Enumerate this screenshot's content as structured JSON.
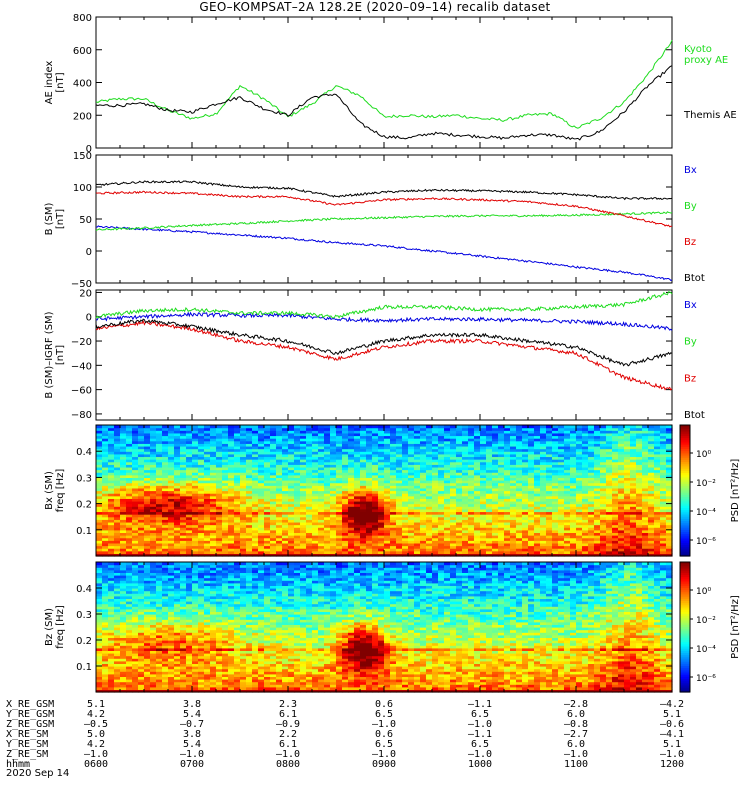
{
  "title": "GEO–KOMPSAT–2A 128.2E (2020–09–14) recalib dataset",
  "colors": {
    "black": "#000000",
    "red": "#e00000",
    "green": "#1fdc1f",
    "blue": "#0000e0"
  },
  "panels": {
    "ae": {
      "ylabel": "AE index\n[nT]",
      "legend": [
        {
          "label": "Kyoto\nproxy AE",
          "color": "#1fdc1f"
        },
        {
          "label": "Themis AE",
          "color": "#000000"
        }
      ]
    },
    "b": {
      "ylabel": "B (SM)\n[nT]",
      "legend": [
        {
          "label": "Bx",
          "color": "#0000e0"
        },
        {
          "label": "By",
          "color": "#1fdc1f"
        },
        {
          "label": "Bz",
          "color": "#e00000"
        },
        {
          "label": "Btot",
          "color": "#000000"
        }
      ]
    },
    "db": {
      "ylabel": "B (SM)–IGRF (SM)\n[nT]",
      "legend": [
        {
          "label": "Bx",
          "color": "#0000e0"
        },
        {
          "label": "By",
          "color": "#1fdc1f"
        },
        {
          "label": "Bz",
          "color": "#e00000"
        },
        {
          "label": "Btot",
          "color": "#000000"
        }
      ]
    },
    "bx_spec": {
      "ylabel": "Bx (SM)\nfreq [Hz]",
      "cbar_label": "PSD [nT²/Hz]"
    },
    "bz_spec": {
      "ylabel": "Bz (SM)\nfreq [Hz]",
      "cbar_label": "PSD [nT²/Hz]"
    }
  },
  "chart_data": [
    {
      "type": "line",
      "title": "GEO–KOMPSAT–2A 128.2E (2020–09–14) recalib dataset",
      "ylabel": "AE index [nT]",
      "xlim": [
        6.0,
        12.0
      ],
      "ylim": [
        0,
        800
      ],
      "yticks": [
        0,
        200,
        400,
        600,
        800
      ],
      "x": [
        6.0,
        6.25,
        6.5,
        6.75,
        7.0,
        7.25,
        7.5,
        7.75,
        8.0,
        8.25,
        8.5,
        8.75,
        9.0,
        9.25,
        9.5,
        9.75,
        10.0,
        10.25,
        10.5,
        10.75,
        11.0,
        11.25,
        11.5,
        11.75,
        12.0
      ],
      "series": [
        {
          "name": "Kyoto proxy AE",
          "values": [
            280,
            300,
            300,
            230,
            180,
            210,
            380,
            300,
            190,
            270,
            380,
            320,
            190,
            200,
            190,
            200,
            180,
            170,
            200,
            210,
            120,
            180,
            280,
            450,
            650
          ]
        },
        {
          "name": "Themis AE",
          "values": [
            260,
            260,
            270,
            230,
            220,
            270,
            310,
            240,
            200,
            310,
            330,
            150,
            70,
            60,
            90,
            80,
            70,
            60,
            80,
            80,
            50,
            100,
            220,
            380,
            500
          ]
        }
      ]
    },
    {
      "type": "line",
      "ylabel": "B (SM) [nT]",
      "xlim": [
        6.0,
        12.0
      ],
      "ylim": [
        -50,
        150
      ],
      "yticks": [
        -50,
        0,
        50,
        100,
        150
      ],
      "x": [
        6.0,
        6.5,
        7.0,
        7.5,
        8.0,
        8.5,
        9.0,
        9.5,
        10.0,
        10.5,
        11.0,
        11.5,
        12.0
      ],
      "series": [
        {
          "name": "Bx",
          "values": [
            38,
            34,
            30,
            25,
            20,
            13,
            8,
            0,
            -8,
            -16,
            -25,
            -33,
            -45
          ]
        },
        {
          "name": "By",
          "values": [
            33,
            36,
            40,
            43,
            47,
            50,
            52,
            54,
            55,
            55,
            56,
            58,
            60
          ]
        },
        {
          "name": "Bz",
          "values": [
            90,
            92,
            90,
            85,
            85,
            72,
            80,
            82,
            80,
            77,
            70,
            55,
            38
          ]
        },
        {
          "name": "Btot",
          "values": [
            103,
            108,
            108,
            100,
            98,
            85,
            92,
            95,
            94,
            92,
            88,
            82,
            82
          ]
        }
      ]
    },
    {
      "type": "line",
      "ylabel": "B (SM)–IGRF (SM) [nT]",
      "xlim": [
        6.0,
        12.0
      ],
      "ylim": [
        -85,
        22
      ],
      "yticks": [
        -80,
        -60,
        -40,
        -20,
        0,
        20
      ],
      "x": [
        6.0,
        6.5,
        7.0,
        7.5,
        8.0,
        8.5,
        9.0,
        9.5,
        10.0,
        10.5,
        11.0,
        11.5,
        12.0
      ],
      "series": [
        {
          "name": "Bx",
          "values": [
            -2,
            0,
            2,
            1,
            1,
            -2,
            -3,
            -2,
            -2,
            -3,
            -4,
            -6,
            -10
          ]
        },
        {
          "name": "By",
          "values": [
            0,
            5,
            6,
            3,
            3,
            0,
            8,
            8,
            6,
            6,
            8,
            10,
            20
          ]
        },
        {
          "name": "Bz",
          "values": [
            -10,
            -5,
            -10,
            -20,
            -25,
            -35,
            -25,
            -20,
            -20,
            -25,
            -30,
            -50,
            -60
          ]
        },
        {
          "name": "Btot",
          "values": [
            -8,
            -3,
            -8,
            -15,
            -20,
            -30,
            -20,
            -15,
            -15,
            -20,
            -25,
            -40,
            -30
          ]
        }
      ]
    },
    {
      "type": "heatmap",
      "ylabel": "Bx (SM) freq [Hz]",
      "xlim": [
        6.0,
        12.0
      ],
      "ylim": [
        0,
        0.5
      ],
      "yticks": [
        0.1,
        0.2,
        0.3,
        0.4
      ],
      "colorbar": {
        "label": "PSD [nT²/Hz]",
        "ticks": [
          "10⁰",
          "10⁻²",
          "10⁻⁴",
          "10⁻⁶"
        ]
      }
    },
    {
      "type": "heatmap",
      "ylabel": "Bz (SM) freq [Hz]",
      "xlim": [
        6.0,
        12.0
      ],
      "ylim": [
        0,
        0.5
      ],
      "yticks": [
        0.1,
        0.2,
        0.3,
        0.4
      ],
      "colorbar": {
        "label": "PSD [nT²/Hz]",
        "ticks": [
          "10⁰",
          "10⁻²",
          "10⁻⁴",
          "10⁻⁶"
        ]
      }
    }
  ],
  "ephemeris": {
    "rows": [
      {
        "label": "X_RE_GSM",
        "values": [
          "5.1",
          "3.8",
          "2.3",
          "0.6",
          "–1.1",
          "–2.8",
          "–4.2"
        ]
      },
      {
        "label": "Y_RE_GSM",
        "values": [
          "4.2",
          "5.4",
          "6.1",
          "6.5",
          "6.5",
          "6.0",
          "5.1"
        ]
      },
      {
        "label": "Z_RE_GSM",
        "values": [
          "–0.5",
          "–0.7",
          "–0.9",
          "–1.0",
          "–1.0",
          "–0.8",
          "–0.6"
        ]
      },
      {
        "label": "X_RE_SM",
        "values": [
          "5.0",
          "3.8",
          "2.2",
          "0.6",
          "–1.1",
          "–2.7",
          "–4.1"
        ]
      },
      {
        "label": "Y_RE_SM",
        "values": [
          "4.2",
          "5.4",
          "6.1",
          "6.5",
          "6.5",
          "6.0",
          "5.1"
        ]
      },
      {
        "label": "Z_RE_SM",
        "values": [
          "–1.0",
          "–1.0",
          "–1.0",
          "–1.0",
          "–1.0",
          "–1.0",
          "–1.0"
        ]
      },
      {
        "label": "hhmm",
        "values": [
          "0600",
          "0700",
          "0800",
          "0900",
          "1000",
          "1100",
          "1200"
        ]
      }
    ],
    "date": "2020 Sep 14"
  }
}
